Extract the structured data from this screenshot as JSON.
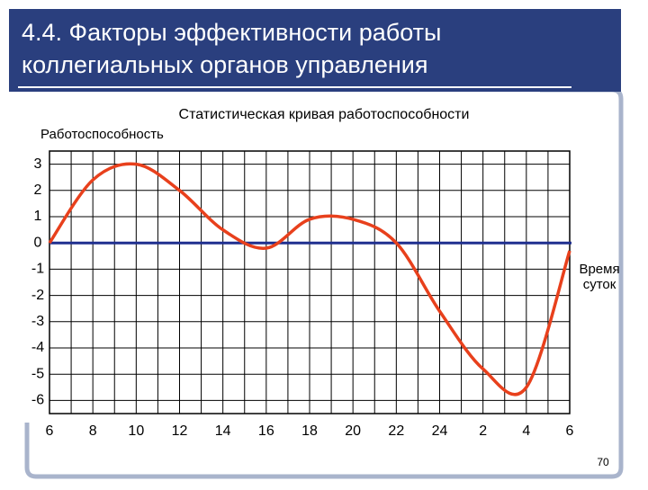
{
  "slide_title_1": "4.4. Факторы эффективности работы",
  "slide_title_2": "коллегиальных органов управления",
  "page_number": "70",
  "chart_data": {
    "type": "line",
    "title": "Статистическая кривая работоспособности",
    "y_label": "Работоспособность",
    "x_label_1": "Время",
    "x_label_2": "суток",
    "categories": [
      "6",
      "8",
      "10",
      "12",
      "14",
      "16",
      "18",
      "20",
      "22",
      "24",
      "2",
      "4",
      "6"
    ],
    "series": [
      {
        "color": "#e8401c",
        "values": [
          0,
          2.4,
          3,
          2,
          0.5,
          -0.2,
          0.9,
          0.9,
          0,
          -2.6,
          -4.8,
          -5.5,
          -0.3
        ]
      }
    ],
    "ylim": [
      -6.5,
      3.5
    ],
    "yticks": [
      3,
      2,
      1,
      0,
      -1,
      -2,
      -3,
      -4,
      -5,
      -6
    ],
    "grid": true,
    "axis_color": "#1f2f8f"
  }
}
